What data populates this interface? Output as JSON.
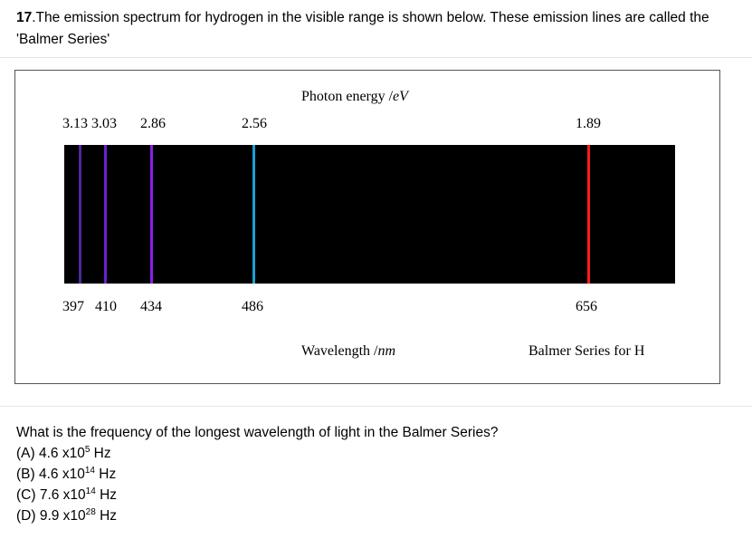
{
  "question": {
    "number": "17",
    "intro": ".The emission spectrum for hydrogen in the visible range is shown below. These emission lines are called the 'Balmer Series'",
    "prompt": "What is the frequency of the longest wavelength of light in the Balmer Series?",
    "options": [
      {
        "prefix": "(A) 4.6 x10",
        "exp": "5",
        "unit": " Hz"
      },
      {
        "prefix": "(B) 4.6 x10",
        "exp": "14",
        "unit": " Hz"
      },
      {
        "prefix": "(C) 7.6 x10",
        "exp": "14",
        "unit": " Hz"
      },
      {
        "prefix": "(D) 9.9 x10",
        "exp": "28",
        "unit": " Hz"
      }
    ]
  },
  "figure": {
    "energy_label_text": "Photon energy /",
    "energy_unit": "eV",
    "wavelength_label_text": "Wavelength /",
    "wavelength_unit": "nm",
    "caption": "Balmer Series for H",
    "energy_labels": {
      "group": "3.13 3.03",
      "e286": "2.86",
      "e256": "2.56",
      "e189": "1.89"
    },
    "wavelength_labels": {
      "w397": "397",
      "w410": "410",
      "w434": "434",
      "w486": "486",
      "w656": "656"
    },
    "line_colors": {
      "l397": "#4a2a9a",
      "l410": "#6a1ed8",
      "l434": "#8a1ee8",
      "l486": "#1aa0d0",
      "l656": "#ff1a1a"
    },
    "bar_color": "#000000"
  }
}
